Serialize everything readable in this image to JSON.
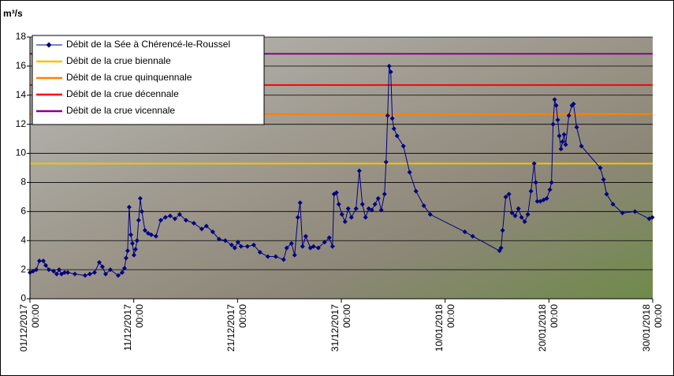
{
  "chart_data": {
    "type": "line",
    "ylabel": "m³/s",
    "xlim": [
      0,
      60
    ],
    "xticks": [
      {
        "value": 0,
        "label": "01/12/2017 00:00"
      },
      {
        "value": 10,
        "label": "11/12/2017 00:00"
      },
      {
        "value": 20,
        "label": "21/12/2017 00:00"
      },
      {
        "value": 30,
        "label": "31/12/2017 00:00"
      },
      {
        "value": 40,
        "label": "10/01/2018 00:00"
      },
      {
        "value": 50,
        "label": "20/01/2018 00:00"
      },
      {
        "value": 60,
        "label": "30/01/2018 00:00"
      }
    ],
    "ylim": [
      0,
      18
    ],
    "yticks": [
      0,
      2,
      4,
      6,
      8,
      10,
      12,
      14,
      16,
      18
    ],
    "grid": true,
    "legend": "upper left",
    "series": [
      {
        "name": "Débit de la Sée à Chérencé-le-Roussel",
        "color": "#000080",
        "x": [
          0,
          0.3,
          0.61,
          0.91,
          1.29,
          1.52,
          1.82,
          2.28,
          2.58,
          2.81,
          3.04,
          3.34,
          3.64,
          4.33,
          5.31,
          5.77,
          6.22,
          6.68,
          6.98,
          7.29,
          7.74,
          8.5,
          8.88,
          9.11,
          9.26,
          9.41,
          9.56,
          9.72,
          9.87,
          10.02,
          10.17,
          10.32,
          10.47,
          10.63,
          10.78,
          11.08,
          11.39,
          11.69,
          12.14,
          12.6,
          13.05,
          13.51,
          13.97,
          14.42,
          15.03,
          15.79,
          16.55,
          17.0,
          17.61,
          18.22,
          18.82,
          19.43,
          19.73,
          20.04,
          20.34,
          20.95,
          21.56,
          22.16,
          22.92,
          23.68,
          24.44,
          24.74,
          25.2,
          25.5,
          25.81,
          26.03,
          26.26,
          26.57,
          27.02,
          27.32,
          27.78,
          28.39,
          28.84,
          29.15,
          29.3,
          29.53,
          29.75,
          30.06,
          30.36,
          30.66,
          30.97,
          31.42,
          31.73,
          32.03,
          32.33,
          32.64,
          32.94,
          33.24,
          33.55,
          33.85,
          34.16,
          34.31,
          34.46,
          34.61,
          34.76,
          34.91,
          35.07,
          35.37,
          35.98,
          36.58,
          37.19,
          37.95,
          38.56,
          41.9,
          42.66,
          45.24,
          45.39,
          45.54,
          45.84,
          46.15,
          46.45,
          46.75,
          47.06,
          47.36,
          47.67,
          47.97,
          48.27,
          48.58,
          48.73,
          48.88,
          49.18,
          49.49,
          49.79,
          50.09,
          50.25,
          50.4,
          50.55,
          50.7,
          50.85,
          51.0,
          51.16,
          51.31,
          51.46,
          51.61,
          51.92,
          52.22,
          52.37,
          52.67,
          53.13,
          54.95,
          55.26,
          55.56,
          56.17,
          57.08,
          58.29,
          59.66,
          59.96
        ],
        "values": [
          1.8,
          1.9,
          2.0,
          2.6,
          2.6,
          2.3,
          2.0,
          1.9,
          1.7,
          2.0,
          1.7,
          1.8,
          1.8,
          1.7,
          1.6,
          1.7,
          1.8,
          2.5,
          2.2,
          1.7,
          2.0,
          1.6,
          1.8,
          2.1,
          2.8,
          3.3,
          6.3,
          4.4,
          3.8,
          3.0,
          3.4,
          4.0,
          5.4,
          6.9,
          6.0,
          4.7,
          4.5,
          4.4,
          4.3,
          5.4,
          5.6,
          5.7,
          5.5,
          5.8,
          5.4,
          5.2,
          4.8,
          5.0,
          4.6,
          4.1,
          4.0,
          3.7,
          3.5,
          3.9,
          3.6,
          3.6,
          3.7,
          3.2,
          2.9,
          2.9,
          2.7,
          3.5,
          3.8,
          3.0,
          5.6,
          6.6,
          3.6,
          4.3,
          3.5,
          3.6,
          3.5,
          3.9,
          4.2,
          3.6,
          7.2,
          7.3,
          6.5,
          5.8,
          5.3,
          6.2,
          5.6,
          6.2,
          8.8,
          6.5,
          5.6,
          6.2,
          6.1,
          6.5,
          6.9,
          6.1,
          7.2,
          9.4,
          12.6,
          16.0,
          15.6,
          12.4,
          11.7,
          11.2,
          10.5,
          8.7,
          7.4,
          6.4,
          5.8,
          4.6,
          4.3,
          3.3,
          3.5,
          4.7,
          7.0,
          7.2,
          5.9,
          5.7,
          6.2,
          5.6,
          5.3,
          5.8,
          7.4,
          9.3,
          8.0,
          6.7,
          6.7,
          6.8,
          6.9,
          7.5,
          8.0,
          12.0,
          13.7,
          13.3,
          12.3,
          11.2,
          10.3,
          10.8,
          11.3,
          10.6,
          12.6,
          13.3,
          13.4,
          11.8,
          10.5,
          9.0,
          8.2,
          7.2,
          6.5,
          5.9,
          6.0,
          5.5,
          5.6
        ]
      }
    ],
    "reference_lines": [
      {
        "name": "Débit de la crue biennale",
        "color": "#f5c400",
        "value": 9.3
      },
      {
        "name": "Débit de la crue quinquennale",
        "color": "#ff8000",
        "value": 12.7
      },
      {
        "name": "Débit de la crue décennale",
        "color": "#ff0000",
        "value": 14.7
      },
      {
        "name": "Débit de la crue vicennale",
        "color": "#8b008b",
        "value": 16.85
      }
    ]
  }
}
